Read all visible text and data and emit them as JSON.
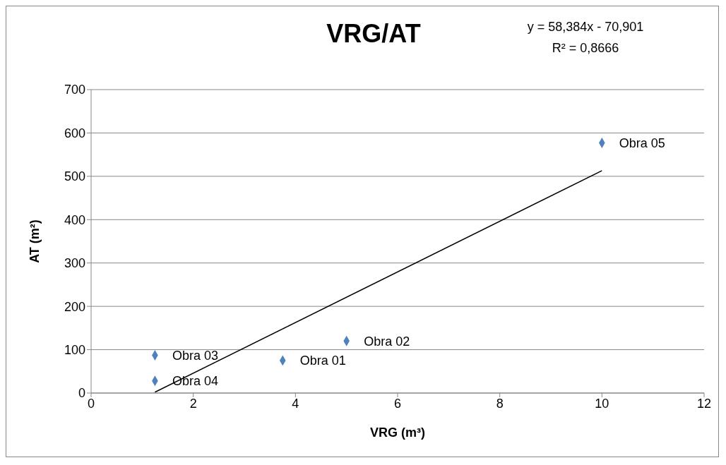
{
  "chart_data": {
    "type": "scatter",
    "title": "VRG/AT",
    "xlabel": "VRG (m³)",
    "ylabel": "AT (m²)",
    "annotations": [
      "y = 58,384x - 70,901",
      "R² = 0,8666"
    ],
    "xlim": [
      0,
      12
    ],
    "xticks": [
      0,
      2,
      4,
      6,
      8,
      10,
      12
    ],
    "ylim": [
      0,
      700
    ],
    "yticks": [
      0,
      100,
      200,
      300,
      400,
      500,
      600,
      700
    ],
    "grid": "y",
    "legend": false,
    "marker": "diamond",
    "series": [
      {
        "color": "#4f81bd",
        "x": [
          3.75,
          5,
          1.25,
          1.25,
          10
        ],
        "values": [
          75,
          120,
          87,
          28,
          577
        ],
        "value_labels": [
          "Obra 01",
          "Obra 02",
          "Obra 03",
          "Obra 04",
          "Obra 05"
        ]
      },
      {
        "type": "line",
        "color": "#000000",
        "x": [
          1.25,
          10
        ],
        "values": [
          2,
          513
        ],
        "marker": "none"
      }
    ]
  }
}
